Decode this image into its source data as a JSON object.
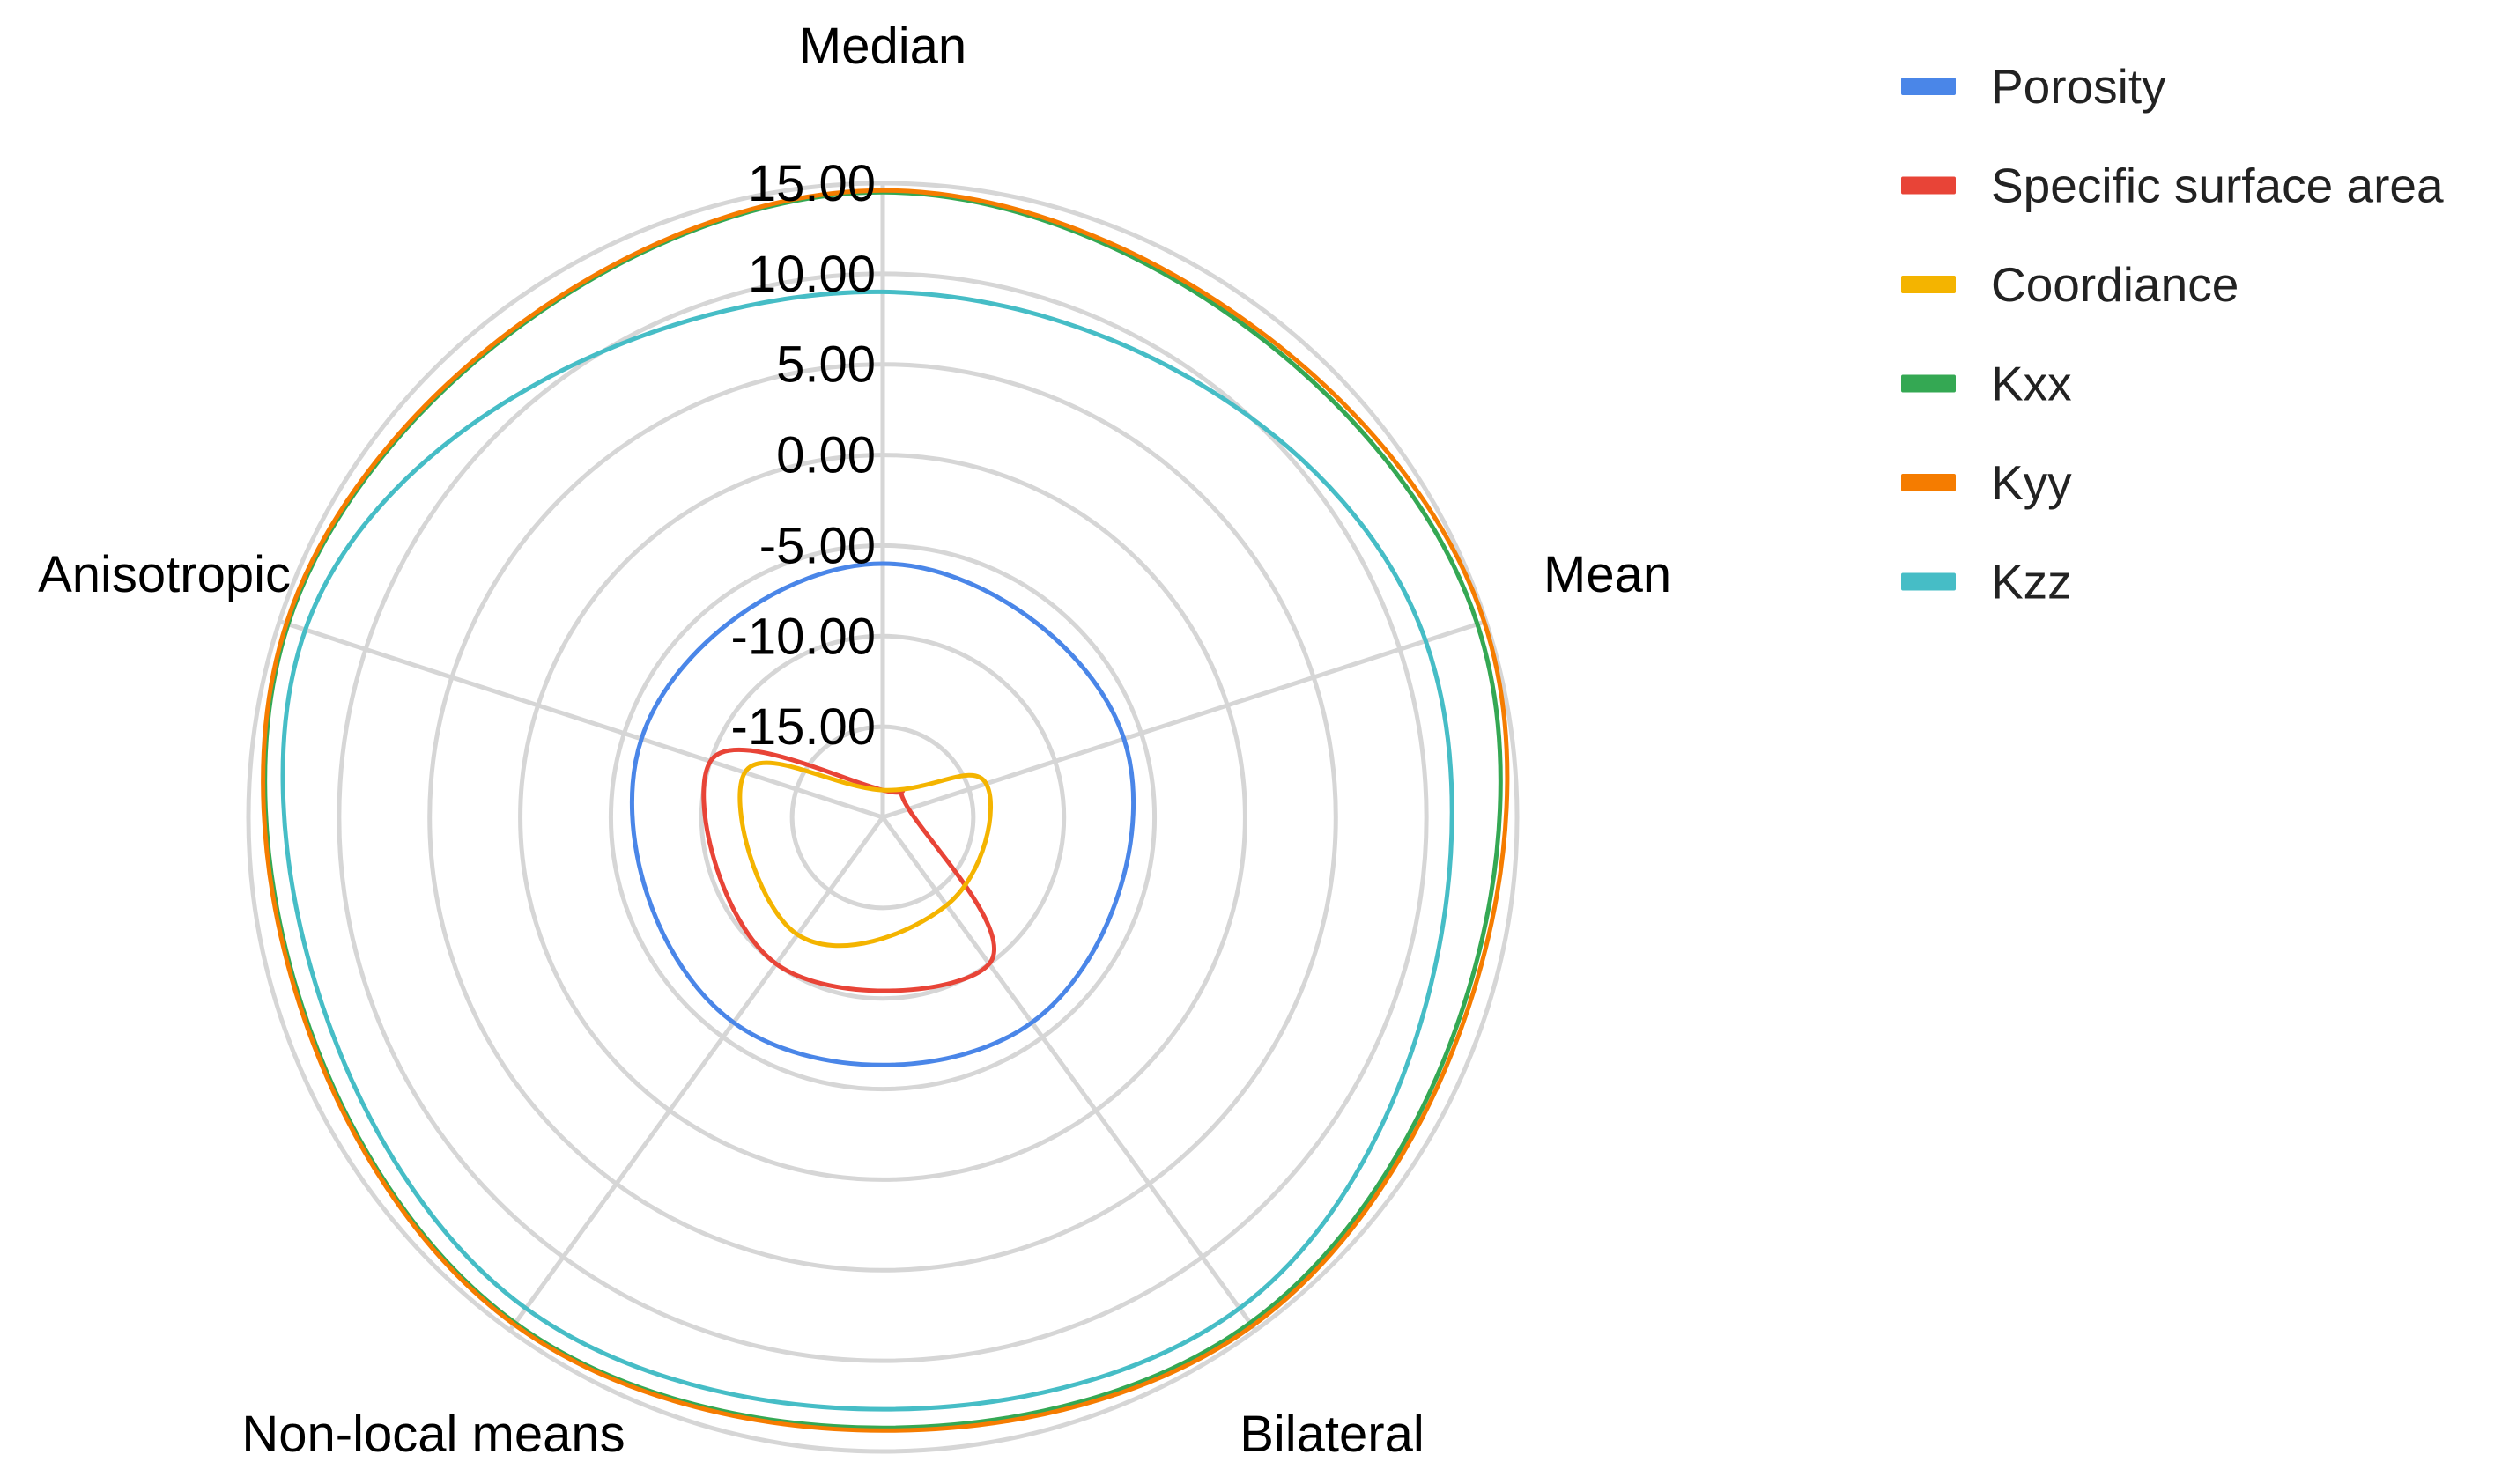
{
  "chart_data": {
    "type": "radar",
    "title": "",
    "axes": [
      "Median",
      "Mean",
      "Bilateral",
      "Non-local means",
      "Anisotropic"
    ],
    "rlim": [
      -20,
      15
    ],
    "ticks": [
      15,
      10,
      5,
      0,
      -5,
      -10,
      -15
    ],
    "tick_labels": [
      "15.00",
      "10.00",
      "5.00",
      "0.00",
      "-5.00",
      "-10.00",
      "-15.00"
    ],
    "grid": true,
    "legend_position": "right",
    "series": [
      {
        "name": "Porosity",
        "color": "#4a86e8",
        "values": [
          -6.0,
          -6.0,
          -6.0,
          -6.0,
          -6.0
        ]
      },
      {
        "name": "Specific surface area",
        "color": "#e84437",
        "values": [
          -18.5,
          -18.5,
          -10.0,
          -10.0,
          -10.0
        ]
      },
      {
        "name": "Coordiance",
        "color": "#f4b400",
        "values": [
          -18.5,
          -14.0,
          -14.0,
          -12.0,
          -12.0
        ]
      },
      {
        "name": "Kxx",
        "color": "#34a853",
        "values": [
          14.5,
          14.5,
          14.5,
          14.5,
          14.5
        ]
      },
      {
        "name": "Kyy",
        "color": "#f57c00",
        "values": [
          14.6,
          14.9,
          14.7,
          14.6,
          14.6
        ]
      },
      {
        "name": "Kzz",
        "color": "#46bdc6",
        "values": [
          9.0,
          11.5,
          13.5,
          13.5,
          13.5
        ]
      }
    ]
  }
}
